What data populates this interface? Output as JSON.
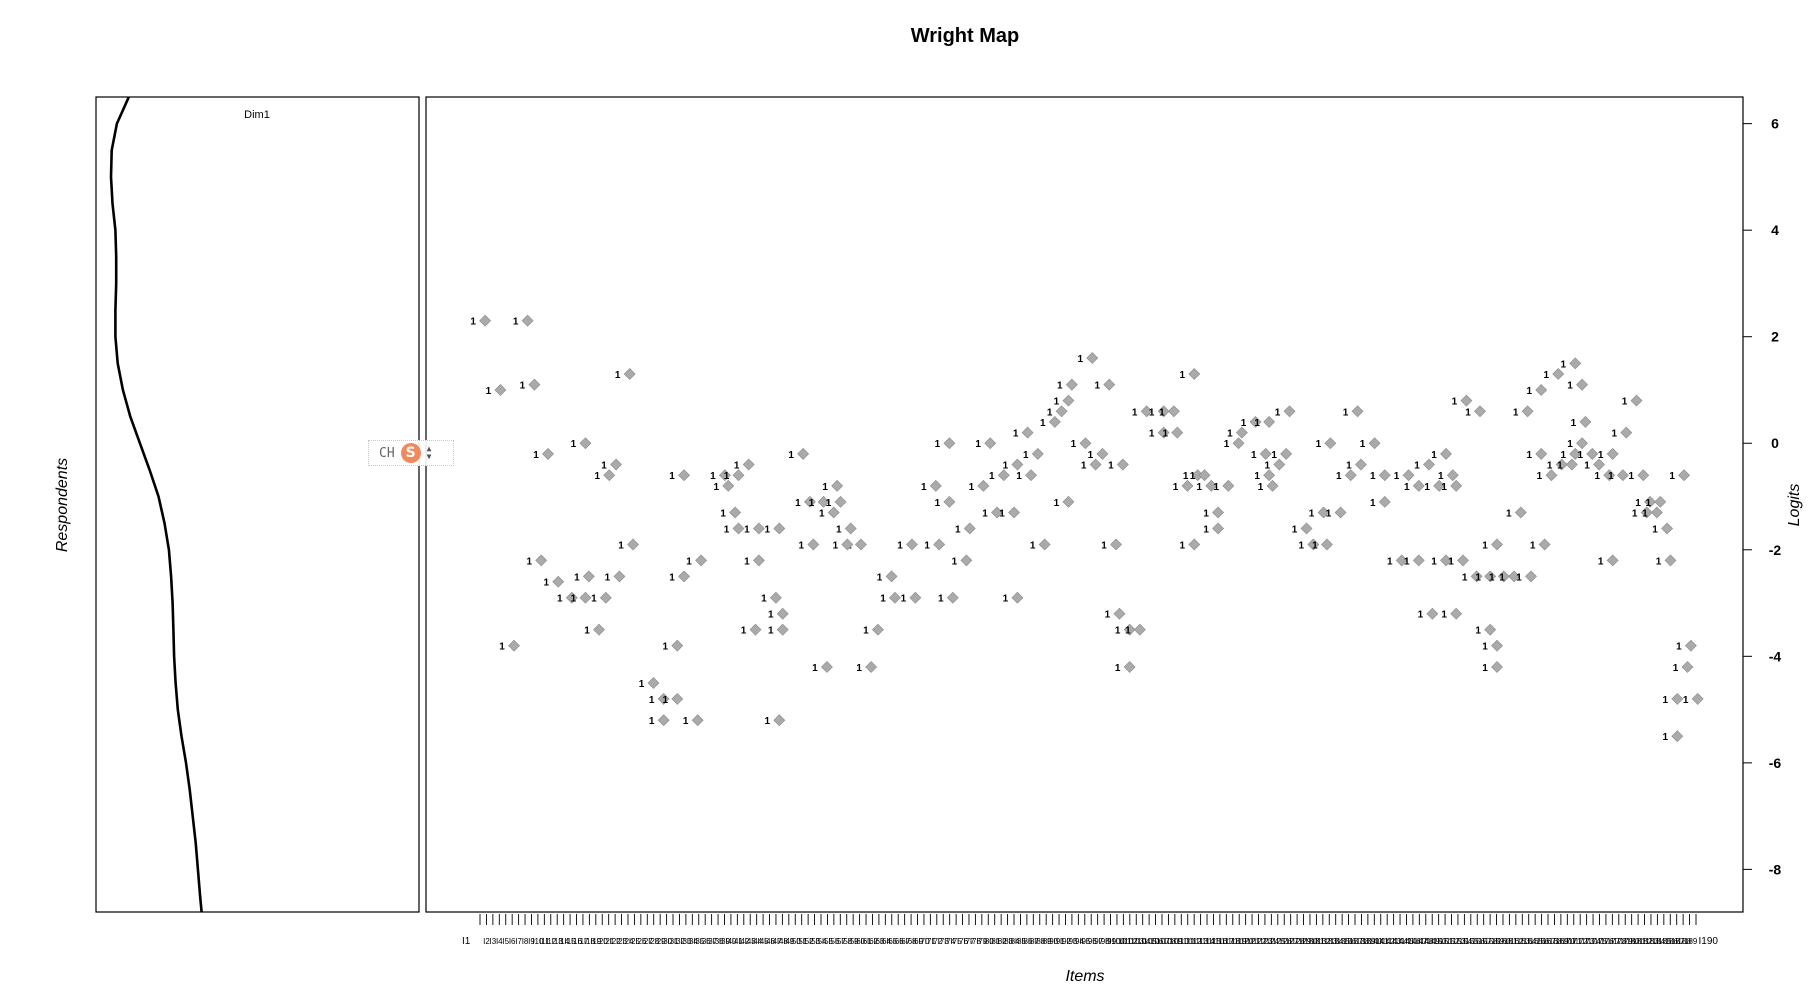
{
  "chart_data": {
    "type": "scatter",
    "title": "Wright Map",
    "xlabel": "Items",
    "ylabel": "Logits",
    "left_ylabel": "Respondents",
    "dimension_label": "Dim1",
    "ylim": [
      -8.8,
      6.5
    ],
    "yticks": [
      6,
      4,
      2,
      0,
      -2,
      -4,
      -6,
      -8
    ],
    "marker_label": "1",
    "marker_color": "#aaaaaa",
    "n_items": 190,
    "first_item_label": "I1",
    "last_item_label": "I190",
    "density": {
      "logit": [
        6.5,
        6.0,
        5.5,
        5.0,
        4.5,
        4.0,
        3.5,
        3.0,
        2.5,
        2.0,
        1.5,
        1.0,
        0.5,
        0.0,
        -0.5,
        -1.0,
        -1.5,
        -2.0,
        -2.5,
        -3.0,
        -3.5,
        -4.0,
        -4.5,
        -5.0,
        -5.5,
        -6.0,
        -6.5,
        -7.0,
        -7.5,
        -8.0,
        -8.5,
        -8.8
      ],
      "value": [
        0.28,
        0.12,
        0.05,
        0.04,
        0.06,
        0.1,
        0.11,
        0.11,
        0.1,
        0.1,
        0.13,
        0.2,
        0.3,
        0.43,
        0.56,
        0.68,
        0.76,
        0.82,
        0.85,
        0.87,
        0.88,
        0.89,
        0.91,
        0.94,
        0.99,
        1.05,
        1.1,
        1.14,
        1.18,
        1.21,
        1.24,
        1.26
      ]
    },
    "points": [
      {
        "x": 0.3,
        "y": 2.3
      },
      {
        "x": 2.8,
        "y": 2.3
      },
      {
        "x": 1.2,
        "y": 1.0
      },
      {
        "x": 3.2,
        "y": 1.1
      },
      {
        "x": 4.0,
        "y": -0.2
      },
      {
        "x": 2.0,
        "y": -3.8
      },
      {
        "x": 3.6,
        "y": -2.2
      },
      {
        "x": 4.6,
        "y": -2.6
      },
      {
        "x": 5.4,
        "y": -2.9
      },
      {
        "x": 6.2,
        "y": -2.9
      },
      {
        "x": 7.4,
        "y": -2.9
      },
      {
        "x": 6.4,
        "y": -2.5
      },
      {
        "x": 8.2,
        "y": -2.5
      },
      {
        "x": 7.0,
        "y": -3.5
      },
      {
        "x": 6.2,
        "y": 0.0
      },
      {
        "x": 8.0,
        "y": -0.4
      },
      {
        "x": 7.6,
        "y": -0.6
      },
      {
        "x": 8.8,
        "y": 1.3
      },
      {
        "x": 9.0,
        "y": -1.9
      },
      {
        "x": 10.2,
        "y": -4.5
      },
      {
        "x": 10.8,
        "y": -4.8
      },
      {
        "x": 11.6,
        "y": -4.8
      },
      {
        "x": 10.8,
        "y": -5.2
      },
      {
        "x": 12.8,
        "y": -5.2
      },
      {
        "x": 11.6,
        "y": -3.8
      },
      {
        "x": 13.0,
        "y": -2.2
      },
      {
        "x": 12.0,
        "y": -2.5
      },
      {
        "x": 12.0,
        "y": -0.6
      },
      {
        "x": 14.4,
        "y": -0.6
      },
      {
        "x": 14.6,
        "y": -0.8
      },
      {
        "x": 15.2,
        "y": -0.6
      },
      {
        "x": 15.8,
        "y": -0.4
      },
      {
        "x": 15.0,
        "y": -1.3
      },
      {
        "x": 15.2,
        "y": -1.6
      },
      {
        "x": 16.4,
        "y": -1.6
      },
      {
        "x": 17.6,
        "y": -1.6
      },
      {
        "x": 16.4,
        "y": -2.2
      },
      {
        "x": 17.4,
        "y": -2.9
      },
      {
        "x": 17.8,
        "y": -3.2
      },
      {
        "x": 16.2,
        "y": -3.5
      },
      {
        "x": 17.8,
        "y": -3.5
      },
      {
        "x": 17.6,
        "y": -5.2
      },
      {
        "x": 19.0,
        "y": -0.2
      },
      {
        "x": 19.4,
        "y": -1.1
      },
      {
        "x": 20.2,
        "y": -1.1
      },
      {
        "x": 19.6,
        "y": -1.9
      },
      {
        "x": 20.4,
        "y": -4.2
      },
      {
        "x": 21.0,
        "y": -0.8
      },
      {
        "x": 21.2,
        "y": -1.1
      },
      {
        "x": 20.8,
        "y": -1.3
      },
      {
        "x": 21.8,
        "y": -1.6
      },
      {
        "x": 22.4,
        "y": -1.9
      },
      {
        "x": 21.6,
        "y": -1.9
      },
      {
        "x": 23.0,
        "y": -4.2
      },
      {
        "x": 23.4,
        "y": -3.5
      },
      {
        "x": 24.2,
        "y": -2.5
      },
      {
        "x": 24.4,
        "y": -2.9
      },
      {
        "x": 25.6,
        "y": -2.9
      },
      {
        "x": 25.4,
        "y": -1.9
      },
      {
        "x": 26.8,
        "y": -0.8
      },
      {
        "x": 27.6,
        "y": -1.1
      },
      {
        "x": 27.0,
        "y": -1.9
      },
      {
        "x": 27.6,
        "y": 0.0
      },
      {
        "x": 28.8,
        "y": -1.6
      },
      {
        "x": 28.6,
        "y": -2.2
      },
      {
        "x": 27.8,
        "y": -2.9
      },
      {
        "x": 29.6,
        "y": -0.8
      },
      {
        "x": 30.8,
        "y": -0.6
      },
      {
        "x": 31.6,
        "y": -0.4
      },
      {
        "x": 30.4,
        "y": -1.3
      },
      {
        "x": 31.4,
        "y": -1.3
      },
      {
        "x": 30.0,
        "y": 0.0
      },
      {
        "x": 31.6,
        "y": -2.9
      },
      {
        "x": 32.2,
        "y": 0.2
      },
      {
        "x": 32.8,
        "y": -0.2
      },
      {
        "x": 32.4,
        "y": -0.6
      },
      {
        "x": 33.2,
        "y": -1.9
      },
      {
        "x": 33.8,
        "y": 0.4
      },
      {
        "x": 34.2,
        "y": 0.6
      },
      {
        "x": 34.6,
        "y": 0.8
      },
      {
        "x": 34.8,
        "y": 1.1
      },
      {
        "x": 34.6,
        "y": -1.1
      },
      {
        "x": 35.6,
        "y": 0.0
      },
      {
        "x": 36.6,
        "y": -0.2
      },
      {
        "x": 36.2,
        "y": -0.4
      },
      {
        "x": 36.0,
        "y": 1.6
      },
      {
        "x": 37.0,
        "y": 1.1
      },
      {
        "x": 37.8,
        "y": -0.4
      },
      {
        "x": 37.4,
        "y": -1.9
      },
      {
        "x": 37.6,
        "y": -3.2
      },
      {
        "x": 38.2,
        "y": -3.5
      },
      {
        "x": 38.8,
        "y": -3.5
      },
      {
        "x": 38.2,
        "y": -4.2
      },
      {
        "x": 39.2,
        "y": 0.6
      },
      {
        "x": 40.2,
        "y": 0.6
      },
      {
        "x": 40.8,
        "y": 0.6
      },
      {
        "x": 40.2,
        "y": 0.2
      },
      {
        "x": 41.0,
        "y": 0.2
      },
      {
        "x": 42.0,
        "y": 1.3
      },
      {
        "x": 41.6,
        "y": -0.8
      },
      {
        "x": 42.2,
        "y": -0.6
      },
      {
        "x": 42.6,
        "y": -0.6
      },
      {
        "x": 43.0,
        "y": -0.8
      },
      {
        "x": 42.0,
        "y": -1.9
      },
      {
        "x": 43.4,
        "y": -1.6
      },
      {
        "x": 43.4,
        "y": -1.3
      },
      {
        "x": 44.0,
        "y": -0.8
      },
      {
        "x": 44.8,
        "y": 0.2
      },
      {
        "x": 44.6,
        "y": 0.0
      },
      {
        "x": 45.6,
        "y": 0.4
      },
      {
        "x": 46.4,
        "y": 0.4
      },
      {
        "x": 46.2,
        "y": -0.2
      },
      {
        "x": 47.0,
        "y": -0.4
      },
      {
        "x": 46.4,
        "y": -0.6
      },
      {
        "x": 46.6,
        "y": -0.8
      },
      {
        "x": 47.6,
        "y": 0.6
      },
      {
        "x": 47.4,
        "y": -0.2
      },
      {
        "x": 48.6,
        "y": -1.6
      },
      {
        "x": 49.6,
        "y": -1.3
      },
      {
        "x": 50.6,
        "y": -1.3
      },
      {
        "x": 49.0,
        "y": -1.9
      },
      {
        "x": 49.8,
        "y": -1.9
      },
      {
        "x": 50.0,
        "y": 0.0
      },
      {
        "x": 51.6,
        "y": 0.6
      },
      {
        "x": 52.6,
        "y": 0.0
      },
      {
        "x": 51.8,
        "y": -0.4
      },
      {
        "x": 51.2,
        "y": -0.6
      },
      {
        "x": 53.2,
        "y": -0.6
      },
      {
        "x": 53.2,
        "y": -1.1
      },
      {
        "x": 54.6,
        "y": -0.6
      },
      {
        "x": 55.8,
        "y": -0.4
      },
      {
        "x": 55.2,
        "y": -0.8
      },
      {
        "x": 56.4,
        "y": -0.8
      },
      {
        "x": 56.8,
        "y": -0.2
      },
      {
        "x": 57.2,
        "y": -0.6
      },
      {
        "x": 57.4,
        "y": -0.8
      },
      {
        "x": 54.2,
        "y": -2.2
      },
      {
        "x": 55.2,
        "y": -2.2
      },
      {
        "x": 56.8,
        "y": -2.2
      },
      {
        "x": 57.8,
        "y": -2.2
      },
      {
        "x": 56.0,
        "y": -3.2
      },
      {
        "x": 57.4,
        "y": -3.2
      },
      {
        "x": 58.6,
        "y": -2.5
      },
      {
        "x": 59.4,
        "y": -2.5
      },
      {
        "x": 60.2,
        "y": -2.5
      },
      {
        "x": 60.8,
        "y": -2.5
      },
      {
        "x": 61.8,
        "y": -2.5
      },
      {
        "x": 59.8,
        "y": -1.9
      },
      {
        "x": 58.8,
        "y": 0.6
      },
      {
        "x": 58.0,
        "y": 0.8
      },
      {
        "x": 59.4,
        "y": -3.5
      },
      {
        "x": 59.8,
        "y": -3.8
      },
      {
        "x": 59.8,
        "y": -4.2
      },
      {
        "x": 61.2,
        "y": -1.3
      },
      {
        "x": 62.6,
        "y": -1.9
      },
      {
        "x": 61.6,
        "y": 0.6
      },
      {
        "x": 62.4,
        "y": 1.0
      },
      {
        "x": 62.4,
        "y": -0.2
      },
      {
        "x": 63.4,
        "y": 1.3
      },
      {
        "x": 64.4,
        "y": 1.5
      },
      {
        "x": 63.6,
        "y": -0.4
      },
      {
        "x": 64.2,
        "y": -0.4
      },
      {
        "x": 63.0,
        "y": -0.6
      },
      {
        "x": 64.4,
        "y": -0.2
      },
      {
        "x": 65.0,
        "y": 0.4
      },
      {
        "x": 64.8,
        "y": 1.1
      },
      {
        "x": 64.8,
        "y": 0.0
      },
      {
        "x": 65.4,
        "y": -0.2
      },
      {
        "x": 66.6,
        "y": -0.2
      },
      {
        "x": 65.8,
        "y": -0.4
      },
      {
        "x": 66.4,
        "y": -0.6
      },
      {
        "x": 67.4,
        "y": 0.2
      },
      {
        "x": 67.2,
        "y": -0.6
      },
      {
        "x": 68.0,
        "y": 0.8
      },
      {
        "x": 68.4,
        "y": -0.6
      },
      {
        "x": 68.8,
        "y": -1.1
      },
      {
        "x": 68.6,
        "y": -1.3
      },
      {
        "x": 69.4,
        "y": -1.1
      },
      {
        "x": 69.2,
        "y": -1.3
      },
      {
        "x": 66.6,
        "y": -2.2
      },
      {
        "x": 69.8,
        "y": -1.6
      },
      {
        "x": 70.0,
        "y": -2.2
      },
      {
        "x": 70.8,
        "y": -0.6
      },
      {
        "x": 71.2,
        "y": -3.8
      },
      {
        "x": 71.0,
        "y": -4.2
      },
      {
        "x": 70.4,
        "y": -4.8
      },
      {
        "x": 71.6,
        "y": -4.8
      },
      {
        "x": 70.4,
        "y": -5.5
      }
    ]
  }
}
